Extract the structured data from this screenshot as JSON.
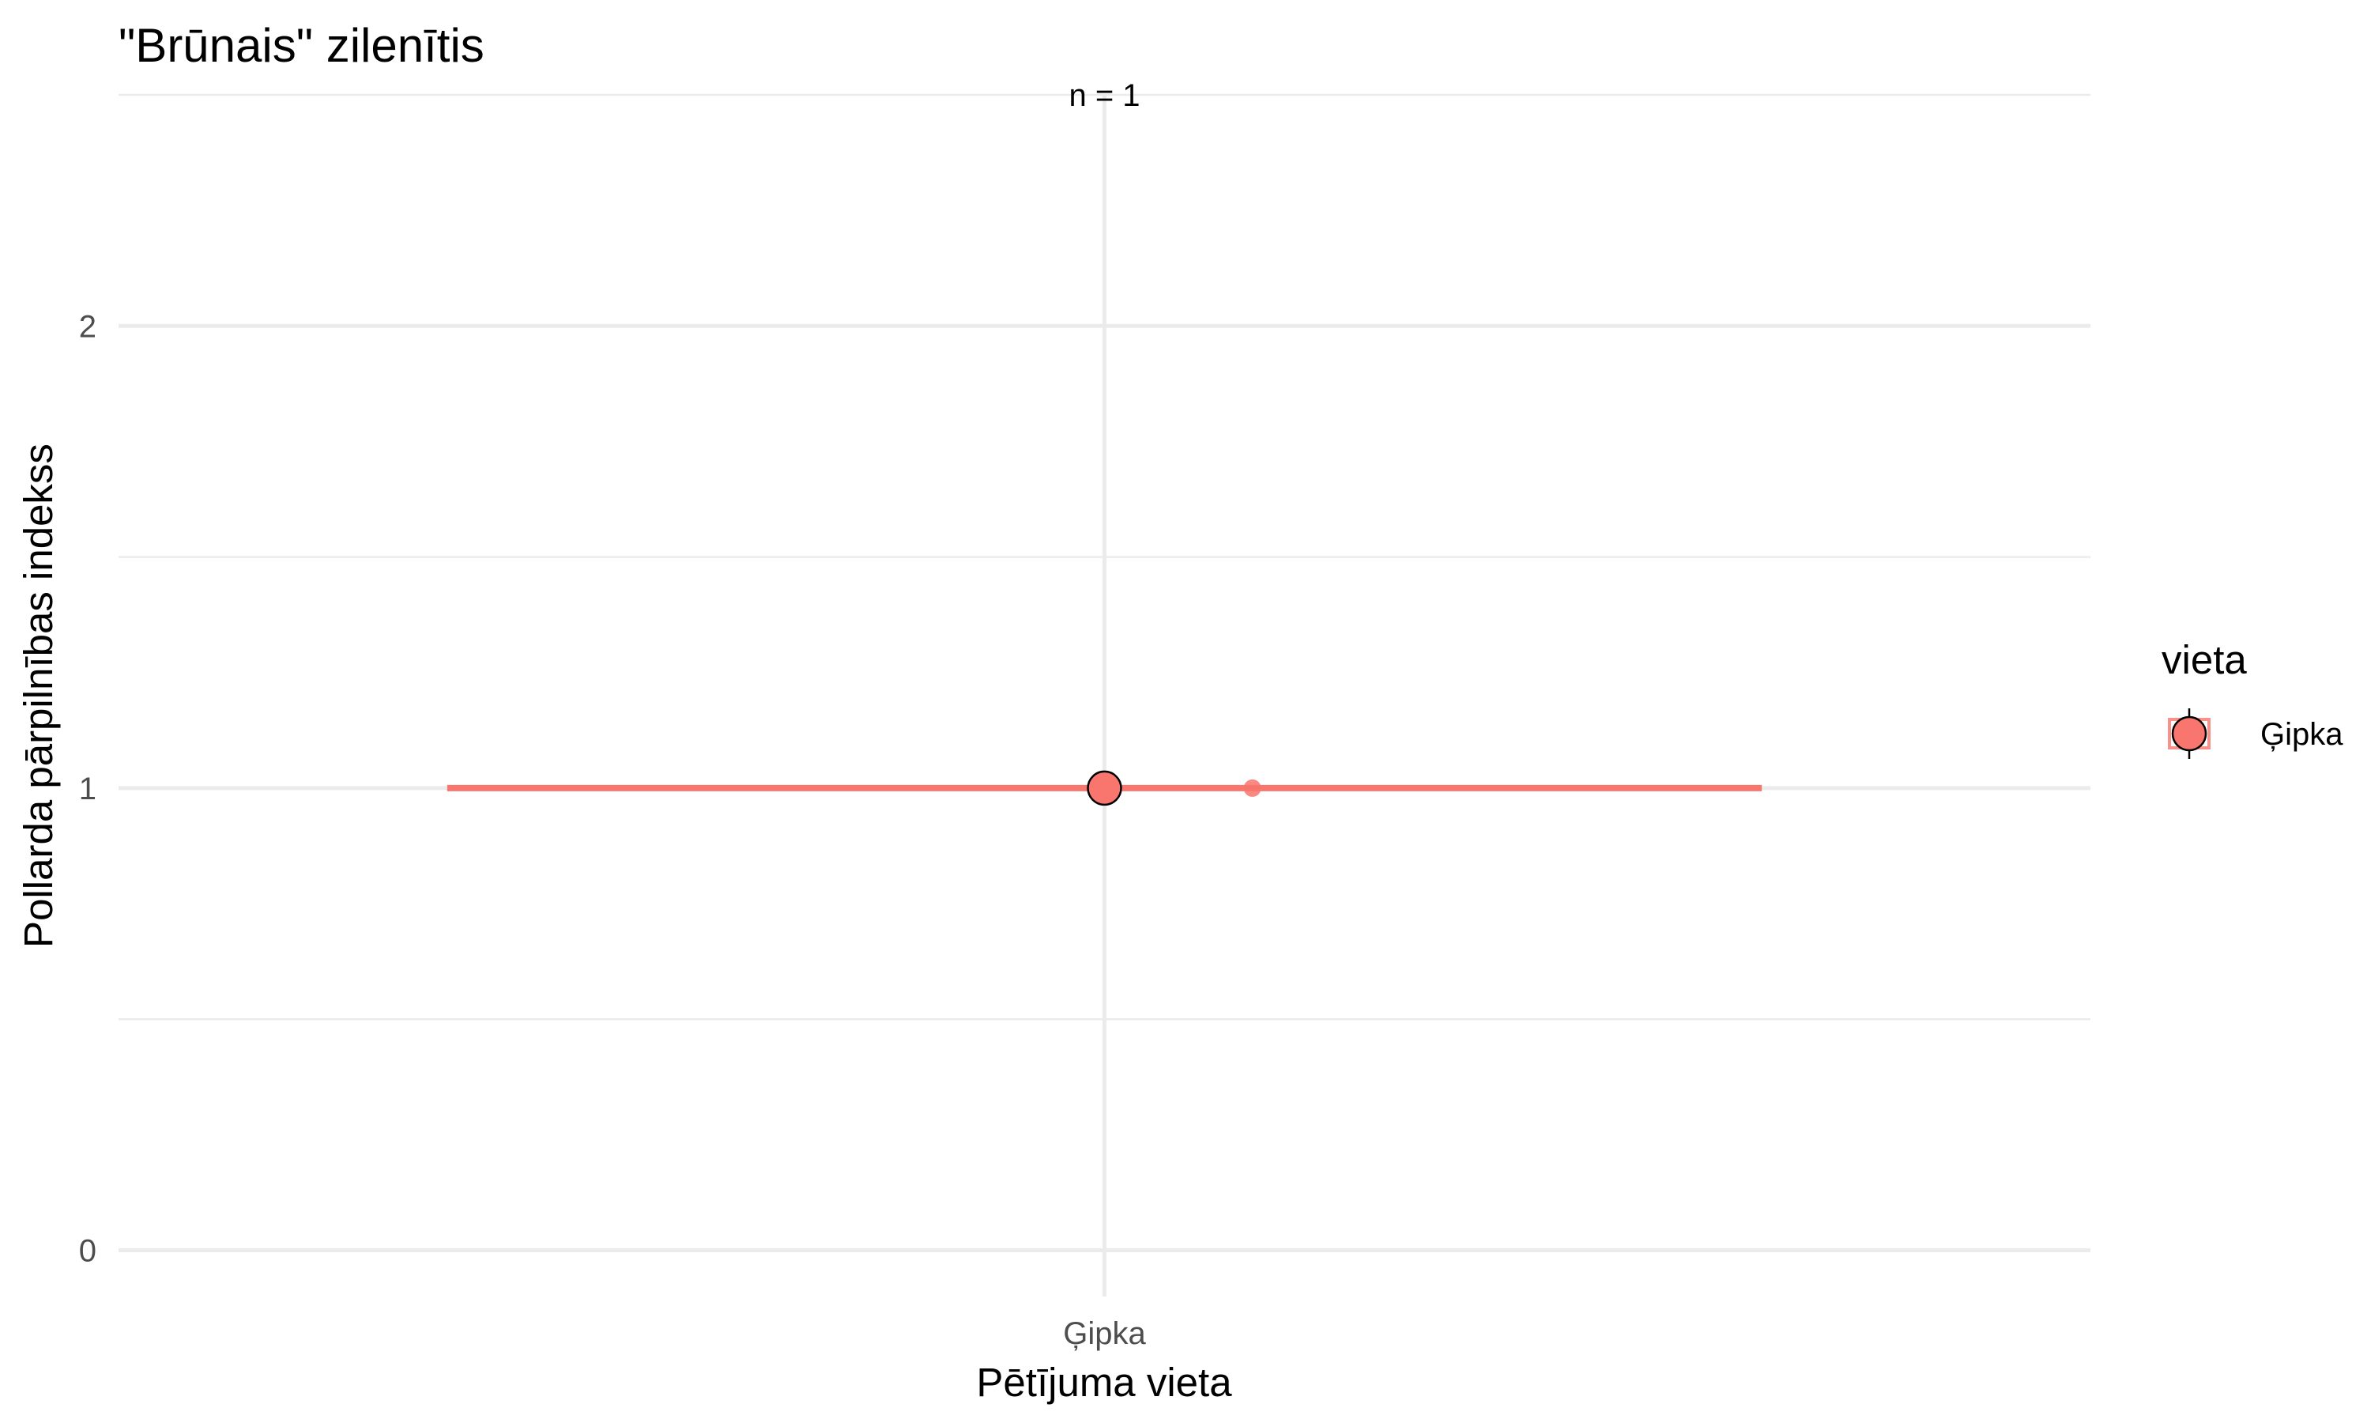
{
  "chart_data": {
    "type": "scatter",
    "title": "\"Brūnais\" zilenītis",
    "xlabel": "Pētījuma vieta",
    "ylabel": "Pollarda pārpilnības indekss",
    "categories": [
      "Ģipka"
    ],
    "ylim": [
      -0.1,
      2.5
    ],
    "yticks": [
      0,
      1,
      2
    ],
    "grid": true,
    "legend": {
      "title": "vieta",
      "position": "right",
      "entries": [
        "Ģipka"
      ]
    },
    "series": [
      {
        "name": "Ģipka",
        "color": "#F8766D",
        "mean": 1,
        "interval": [
          1,
          1
        ],
        "points": [
          {
            "category": "Ģipka",
            "y": 1
          }
        ]
      }
    ],
    "annotations": [
      {
        "category": "Ģipka",
        "y": 2.5,
        "text": "n = 1"
      }
    ]
  }
}
